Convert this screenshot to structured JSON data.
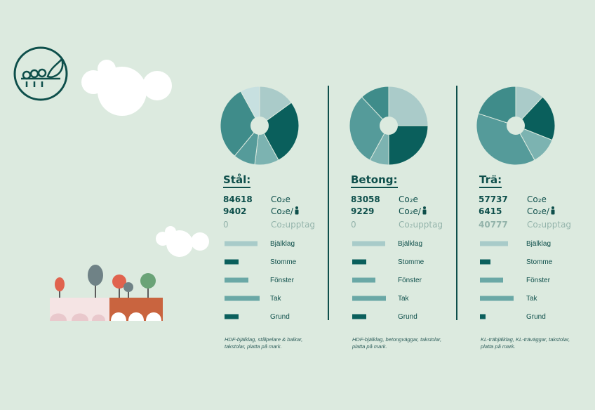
{
  "colors": {
    "background": "#dceadf",
    "dark": "#0e4f4b",
    "pie": [
      "#aacbc9",
      "#0a5f5c",
      "#7cb3b1",
      "#559b9a",
      "#3f8c8a",
      "#c7e0e0"
    ],
    "bar_dark": "#0a5f5c",
    "bar_mid": "#6aa8a6",
    "bar_light": "#a8cbc9"
  },
  "logo_icon": "tree-logo-icon",
  "units": {
    "co2e": "Co₂e",
    "co2e_person": "Co₂e/",
    "co2_uptake": "Co₂upptag",
    "person_icon": "person-icon"
  },
  "chart_data": [
    {
      "type": "pie",
      "title": "Stål:",
      "slices": [
        15,
        27,
        10,
        9,
        31,
        8
      ],
      "co2e": "84618",
      "co2e_person": "9402",
      "co2_uptake": "0",
      "categories": [
        "Bjälklag",
        "Stomme",
        "Fönster",
        "Tak",
        "Grund"
      ],
      "values": [
        47,
        20,
        34,
        50,
        20
      ],
      "note": "HDF-bjälklag, stålpelare & balkar, takstolar, platta på mark."
    },
    {
      "type": "pie",
      "title": "Betong:",
      "slices": [
        25,
        25,
        8,
        30,
        12
      ],
      "co2e": "83058",
      "co2e_person": "9229",
      "co2_uptake": "0",
      "categories": [
        "Bjälklag",
        "Stomme",
        "Fönster",
        "Tak",
        "Grund"
      ],
      "values": [
        47,
        20,
        33,
        48,
        20
      ],
      "note": "HDF-bjälklag, betongväggar, takstolar, platta på mark."
    },
    {
      "type": "pie",
      "title": "Trä:",
      "slices": [
        12,
        19,
        11,
        38,
        20
      ],
      "co2e": "57737",
      "co2e_person": "6415",
      "co2_uptake": "40777",
      "categories": [
        "Bjälklag",
        "Stomme",
        "Fönster",
        "Tak",
        "Grund"
      ],
      "values": [
        40,
        15,
        33,
        48,
        8
      ],
      "note": "KL-träbjälklag, KL-träväggar, takstolar, platta på mark."
    }
  ]
}
